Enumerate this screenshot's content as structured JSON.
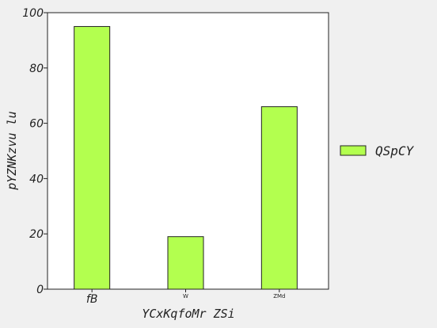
{
  "chart_data": {
    "type": "bar",
    "categories": [
      "fB",
      "W",
      "ZMd"
    ],
    "series": [
      {
        "name": "QSpCY",
        "values": [
          95,
          19,
          66
        ],
        "color": "#b3ff4f"
      }
    ],
    "title": "",
    "xlabel": "YCxKqfoMr ZSi",
    "ylabel": "pYZNKzvu lu",
    "ylim": [
      0,
      100
    ],
    "yticks": [
      0,
      20,
      40,
      60,
      80,
      100
    ],
    "grid": false,
    "legend": "right"
  }
}
